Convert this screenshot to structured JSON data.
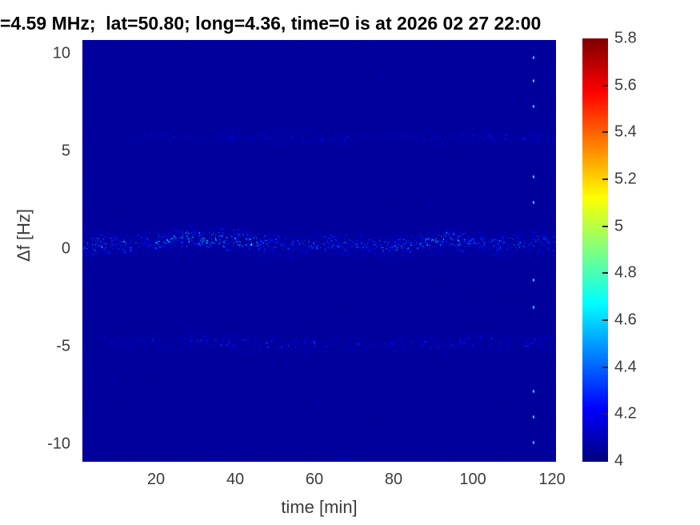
{
  "chart_data": {
    "type": "heatmap",
    "title": "=4.59 MHz;  lat=50.80; long=4.36, time=0 is at 2026 02 27 22:00",
    "xlabel": "time [min]",
    "ylabel": "Δf [Hz]",
    "x_ticks": [
      20,
      40,
      60,
      80,
      100,
      120
    ],
    "y_ticks": [
      10,
      5,
      0,
      -5,
      -10
    ],
    "x_range": [
      1.4,
      121.0
    ],
    "y_range": [
      -10.9,
      10.7
    ],
    "grid": false,
    "colormap": "jet",
    "legend": "none",
    "colorbar": {
      "min": 4,
      "max": 5.8,
      "ticks": [
        4,
        4.2,
        4.4,
        4.6,
        4.8,
        5,
        5.2,
        5.4,
        5.6,
        5.8
      ],
      "tick_labels": [
        "4",
        "4.2",
        "4.4",
        "4.6",
        "4.8",
        "5",
        "5.2",
        "5.4",
        "5.6",
        "5.8"
      ],
      "bottom_color": "#000080",
      "top_color": "#800000"
    },
    "background_value": 4.05,
    "noise": {
      "count": 2600,
      "value_min": 4.0,
      "value_max": 4.22
    },
    "bands": [
      {
        "name": "carrier-doppler-trace",
        "sigma_hz": 0.4,
        "count": 2400,
        "base_value": 4.05,
        "peak_value": 4.78,
        "center_track": [
          [
            1.4,
            0.2
          ],
          [
            15,
            0.35
          ],
          [
            33,
            0.55
          ],
          [
            45,
            0.33
          ],
          [
            55,
            0.2
          ],
          [
            67,
            0.35
          ],
          [
            78,
            0.12
          ],
          [
            92,
            0.45
          ],
          [
            105,
            0.27
          ],
          [
            121,
            0.38
          ]
        ],
        "bright_segments": [
          [
            2,
            14,
            0.2
          ],
          [
            20,
            48,
            0.35
          ],
          [
            80,
            100,
            0.22
          ]
        ]
      },
      {
        "name": "upper-multipath-band",
        "sigma_hz": 0.3,
        "count": 850,
        "base_value": 4.04,
        "peak_value": 4.42,
        "center_track": [
          [
            1.4,
            5.7
          ],
          [
            40,
            5.78
          ],
          [
            70,
            5.7
          ],
          [
            100,
            5.76
          ],
          [
            121,
            5.7
          ]
        ],
        "weight_segments": [
          [
            1.4,
            12,
            0.3
          ],
          [
            12,
            35,
            0.65
          ],
          [
            35,
            78,
            1
          ],
          [
            78,
            95,
            0.7
          ],
          [
            95,
            121,
            1
          ]
        ],
        "bright_segments": [
          [
            55,
            75,
            0.12
          ],
          [
            100,
            118,
            0.15
          ]
        ]
      },
      {
        "name": "lower-multipath-band",
        "sigma_hz": 0.32,
        "count": 1000,
        "base_value": 4.04,
        "peak_value": 4.5,
        "center_track": [
          [
            1.4,
            -4.8
          ],
          [
            30,
            -4.7
          ],
          [
            55,
            -4.9
          ],
          [
            80,
            -4.8
          ],
          [
            105,
            -4.75
          ],
          [
            121,
            -4.85
          ]
        ],
        "weight_segments": [
          [
            1.4,
            8,
            0.35
          ],
          [
            8,
            28,
            0.75
          ],
          [
            28,
            62,
            1
          ],
          [
            62,
            78,
            0.7
          ],
          [
            78,
            118,
            1
          ],
          [
            118,
            121,
            0.8
          ]
        ],
        "bright_segments": [
          [
            30,
            60,
            0.15
          ],
          [
            80,
            95,
            0.15
          ],
          [
            100,
            115,
            0.12
          ]
        ]
      }
    ],
    "interference_spike": {
      "time_min": 115.4,
      "freqs_hz": [
        9.8,
        8.6,
        7.3,
        3.7,
        2.4,
        -1.6,
        -3.0,
        -7.3,
        -8.6,
        -9.9
      ],
      "value": 4.6
    }
  }
}
